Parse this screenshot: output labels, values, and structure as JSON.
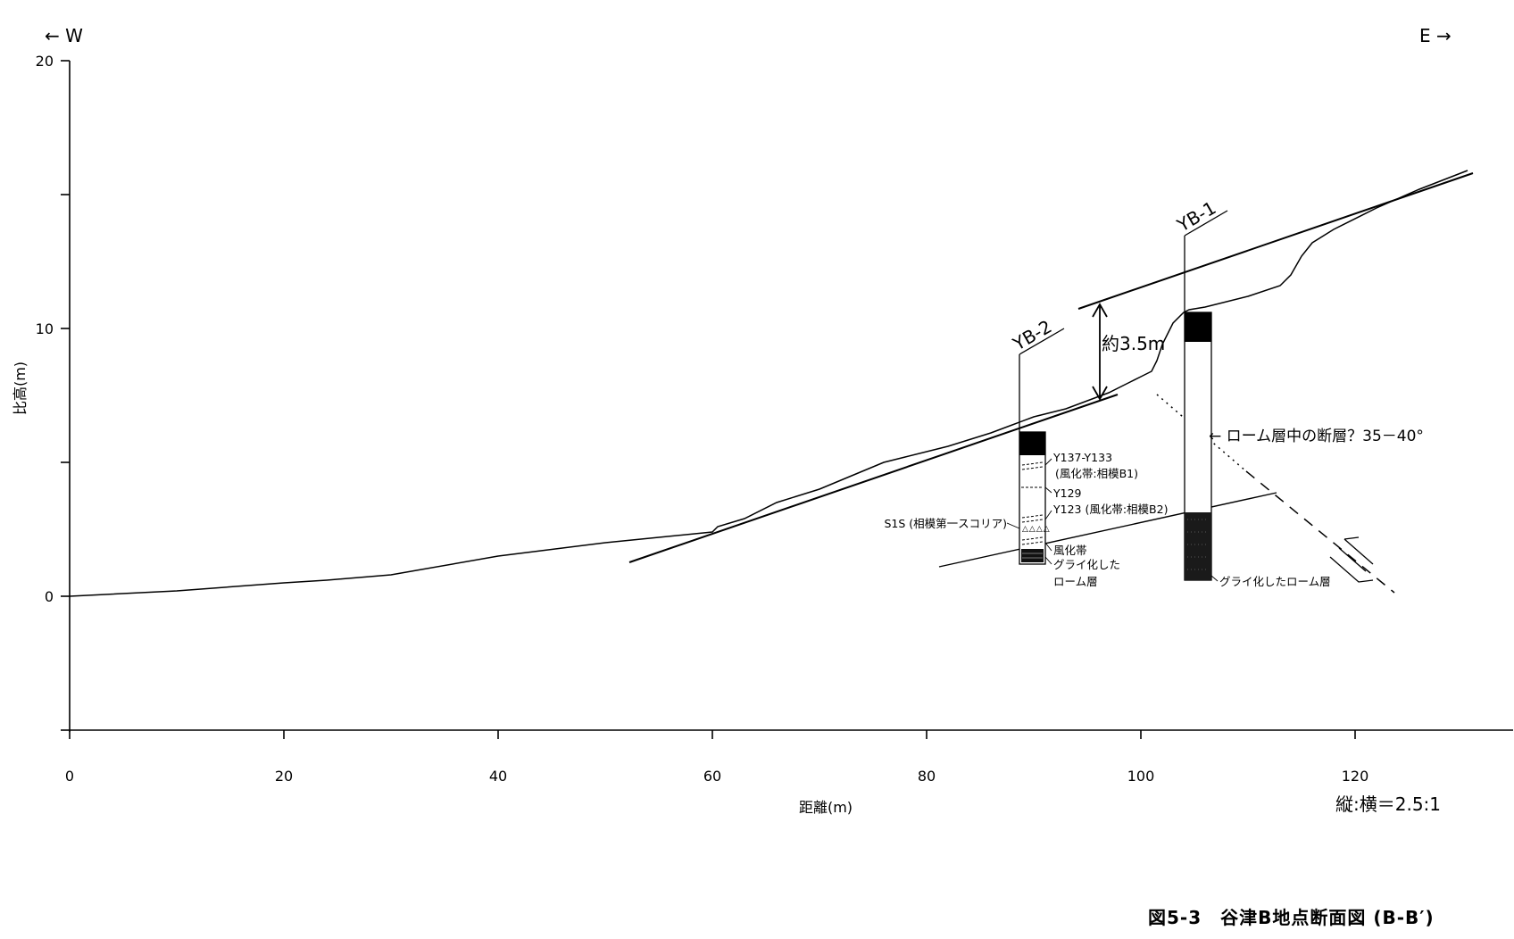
{
  "orientation": {
    "west": "←  W",
    "east": "E  →"
  },
  "axes": {
    "x_ticks": [
      "0",
      "20",
      "40",
      "60",
      "80",
      "100",
      "120"
    ],
    "y_ticks": [
      "20",
      "10",
      "0"
    ],
    "xlabel": "距離(m)",
    "ylabel": "比高(m)"
  },
  "scale_note": "縦:横＝2.5:1",
  "figure_title": "図5-3　谷津B地点断面図 (B-B′)",
  "boreholes": {
    "yb1": {
      "label": "YB-1"
    },
    "yb2": {
      "label": "YB-2"
    }
  },
  "annotations": {
    "offset": "約3.5m",
    "fault": "← ローム層中の断層？35－40°",
    "yb1_bottom": "グライ化したローム層",
    "yb2_y137": "Y137-Y133",
    "yb2_y137_sub": "(風化帯:相模B1)",
    "yb2_y129": "Y129",
    "yb2_y123": "Y123 (風化帯:相模B2)",
    "yb2_s1s": "S1S (相模第一スコリア)",
    "yb2_weather": "風化帯",
    "yb2_gley1": "グライ化した",
    "yb2_gley2": "ローム層"
  },
  "chart_data": {
    "type": "line",
    "xlabel": "距離(m)",
    "ylabel": "比高(m)",
    "xlim": [
      0,
      135
    ],
    "ylim": [
      -5,
      20
    ],
    "x_ticks": [
      0,
      20,
      40,
      60,
      80,
      100,
      120
    ],
    "y_ticks": [
      0,
      10,
      20
    ],
    "series": [
      {
        "x": [
          0,
          10,
          20,
          24,
          30,
          40,
          44,
          50,
          55,
          60,
          60.5,
          63,
          66,
          70,
          73,
          76,
          78,
          82,
          86,
          88,
          90,
          93,
          95,
          97,
          98.5,
          99,
          100,
          101,
          101.5,
          102,
          103,
          104,
          104.5,
          106,
          110,
          113,
          114,
          115,
          116,
          118,
          122,
          126,
          130.5
        ],
        "y": [
          0,
          0.2,
          0.5,
          0.6,
          0.8,
          1.5,
          1.7,
          2.0,
          2.2,
          2.4,
          2.6,
          2.9,
          3.5,
          4.0,
          4.5,
          5.0,
          5.2,
          5.6,
          6.1,
          6.4,
          6.7,
          7.0,
          7.3,
          7.6,
          7.9,
          8.0,
          8.2,
          8.4,
          8.8,
          9.4,
          10.2,
          10.6,
          10.7,
          10.8,
          11.2,
          11.6,
          12.0,
          12.7,
          13.2,
          13.7,
          14.5,
          15.2,
          15.9
        ]
      }
    ],
    "grid": false
  }
}
